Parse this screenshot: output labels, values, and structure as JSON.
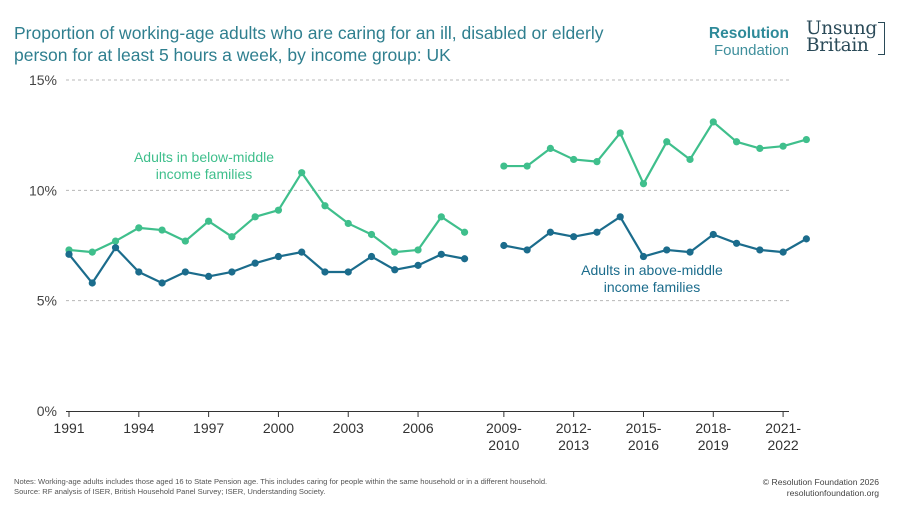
{
  "title_lines": [
    "Proportion of working-age adults who are caring for an ill, disabled or elderly",
    "person for at least 5 hours a week, by income group: UK"
  ],
  "logos": {
    "resolution": [
      "Resolution",
      "Foundation"
    ],
    "unsung": [
      "Unsung",
      "Britain"
    ]
  },
  "notes_lines": [
    "Notes: Working-age adults includes those aged 16 to State Pension age. This includes caring for people within the same household or in a different household.",
    "Source: RF analysis of ISER, British Household Panel Survey; ISER, Understanding Society."
  ],
  "credit_lines": [
    "© Resolution Foundation 2026",
    "resolutionfoundation.org"
  ],
  "chart_data": {
    "type": "line",
    "title": "Proportion of working-age adults who are caring for an ill, disabled or elderly person for at least 5 hours a week, by income group: UK",
    "ylim": [
      0,
      15
    ],
    "y_ticks": [
      "0%",
      "5%",
      "10%",
      "15%"
    ],
    "grid": true,
    "x_periods": [
      "1991",
      "1992",
      "1993",
      "1994",
      "1995",
      "1996",
      "1997",
      "1998",
      "1999",
      "2000",
      "2001",
      "2002",
      "2003",
      "2004",
      "2005",
      "2006",
      "2007",
      "2008",
      "2009-2010",
      "2010-2011",
      "2011-2012",
      "2012-2013",
      "2013-2014",
      "2014-2015",
      "2015-2016",
      "2016-2017",
      "2017-2018",
      "2018-2019",
      "2019-2020",
      "2020-2021",
      "2021-2022",
      "2022-2023"
    ],
    "x_tick_labels": [
      {
        "period": "1991",
        "lines": [
          "1991"
        ]
      },
      {
        "period": "1994",
        "lines": [
          "1994"
        ]
      },
      {
        "period": "1997",
        "lines": [
          "1997"
        ]
      },
      {
        "period": "2000",
        "lines": [
          "2000"
        ]
      },
      {
        "period": "2003",
        "lines": [
          "2003"
        ]
      },
      {
        "period": "2006",
        "lines": [
          "2006"
        ]
      },
      {
        "period": "2009-2010",
        "lines": [
          "2009-",
          "2010"
        ]
      },
      {
        "period": "2012-2013",
        "lines": [
          "2012-",
          "2013"
        ]
      },
      {
        "period": "2015-2016",
        "lines": [
          "2015-",
          "2016"
        ]
      },
      {
        "period": "2018-2019",
        "lines": [
          "2018-",
          "2019"
        ]
      },
      {
        "period": "2021-2022",
        "lines": [
          "2021-",
          "2022"
        ]
      }
    ],
    "series": [
      {
        "name": "Adults in below-middle income families",
        "label_lines": [
          "Adults in below-middle",
          "income families"
        ],
        "color": "#3fbf8c",
        "segments": [
          [
            7.3,
            7.2,
            7.7,
            8.3,
            8.2,
            7.7,
            8.6,
            7.9,
            8.8,
            9.1,
            10.8,
            9.3,
            8.5,
            8.0,
            7.2,
            7.3,
            8.8,
            8.1
          ],
          [
            11.1,
            11.1,
            11.9,
            11.4,
            11.3,
            12.6,
            10.3,
            12.2,
            11.4,
            13.1,
            12.2,
            11.9,
            12.0,
            12.3
          ]
        ]
      },
      {
        "name": "Adults in above-middle income families",
        "label_lines": [
          "Adults in above-middle",
          "income families"
        ],
        "color": "#1b6c8c",
        "segments": [
          [
            7.1,
            5.8,
            7.4,
            6.3,
            5.8,
            6.3,
            6.1,
            6.3,
            6.7,
            7.0,
            7.2,
            6.3,
            6.3,
            7.0,
            6.4,
            6.6,
            7.1,
            6.9
          ],
          [
            7.5,
            7.3,
            8.1,
            7.9,
            8.1,
            8.8,
            7.0,
            7.3,
            7.2,
            8.0,
            7.6,
            7.3,
            7.2,
            7.8
          ]
        ]
      }
    ]
  }
}
